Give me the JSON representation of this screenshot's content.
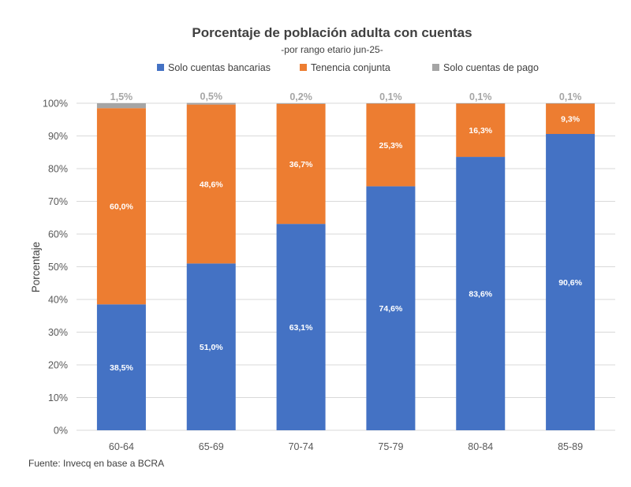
{
  "chart_data": {
    "type": "bar",
    "stacked": true,
    "title": "Porcentaje de población adulta con cuentas",
    "subtitle": "-por rango etario jun-25-",
    "xlabel": "",
    "ylabel": "Porcentaje",
    "ylim": [
      0,
      100
    ],
    "yticks": [
      "0%",
      "10%",
      "20%",
      "30%",
      "40%",
      "50%",
      "60%",
      "70%",
      "80%",
      "90%",
      "100%"
    ],
    "grid": true,
    "legend_position": "top",
    "categories": [
      "60-64",
      "65-69",
      "70-74",
      "75-79",
      "80-84",
      "85-89"
    ],
    "series": [
      {
        "name": "Solo cuentas bancarias",
        "color": "#4472c4",
        "values": [
          38.5,
          51.0,
          63.1,
          74.6,
          83.6,
          90.6
        ],
        "labels": [
          "38,5%",
          "51,0%",
          "63,1%",
          "74,6%",
          "83,6%",
          "90,6%"
        ]
      },
      {
        "name": "Tenencia conjunta",
        "color": "#ed7d31",
        "values": [
          60.0,
          48.6,
          36.7,
          25.3,
          16.3,
          9.3
        ],
        "labels": [
          "60,0%",
          "48,6%",
          "36,7%",
          "25,3%",
          "16,3%",
          "9,3%"
        ]
      },
      {
        "name": "Solo cuentas de pago",
        "color": "#a5a5a5",
        "values": [
          1.5,
          0.5,
          0.2,
          0.1,
          0.1,
          0.1
        ],
        "labels": [
          "1,5%",
          "0,5%",
          "0,2%",
          "0,1%",
          "0,1%",
          "0,1%"
        ]
      }
    ],
    "source": "Fuente: Invecq en base a BCRA"
  }
}
